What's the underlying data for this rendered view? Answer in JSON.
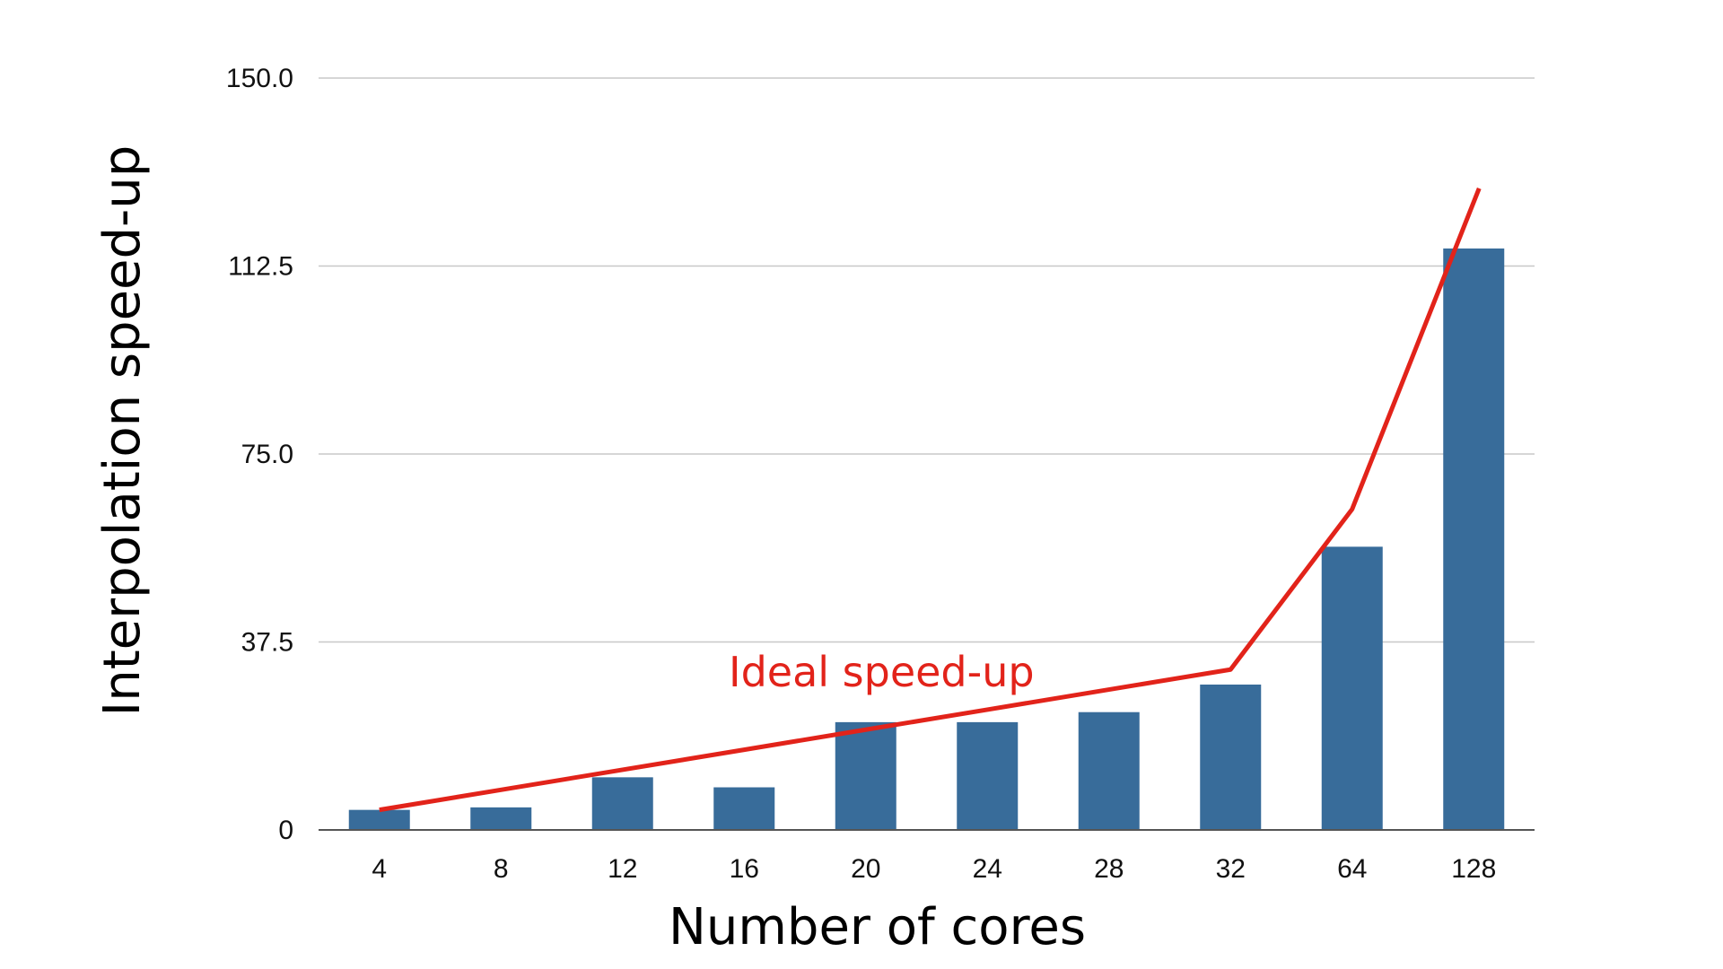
{
  "chart_data": {
    "type": "bar",
    "title": "",
    "xlabel": "Number of cores",
    "ylabel": "Interpolation speed-up",
    "categories": [
      "4",
      "8",
      "12",
      "16",
      "20",
      "24",
      "28",
      "32",
      "64",
      "128"
    ],
    "series": [
      {
        "values": [
          4,
          4.5,
          10.5,
          8.5,
          21.5,
          21.5,
          23.5,
          29,
          56.5,
          116
        ],
        "color": "#386c9a"
      }
    ],
    "ideal_line": {
      "values": [
        4,
        8,
        12,
        16,
        20,
        24,
        28,
        32,
        64,
        128
      ],
      "color": "#e2231a"
    },
    "annotation": {
      "text": "Ideal speed-up",
      "color": "#e2231a"
    },
    "yticks": [
      "0",
      "37.5",
      "75.0",
      "112.5",
      "150.0"
    ],
    "ylim": [
      0,
      150
    ],
    "grid": true,
    "legend": "none"
  }
}
